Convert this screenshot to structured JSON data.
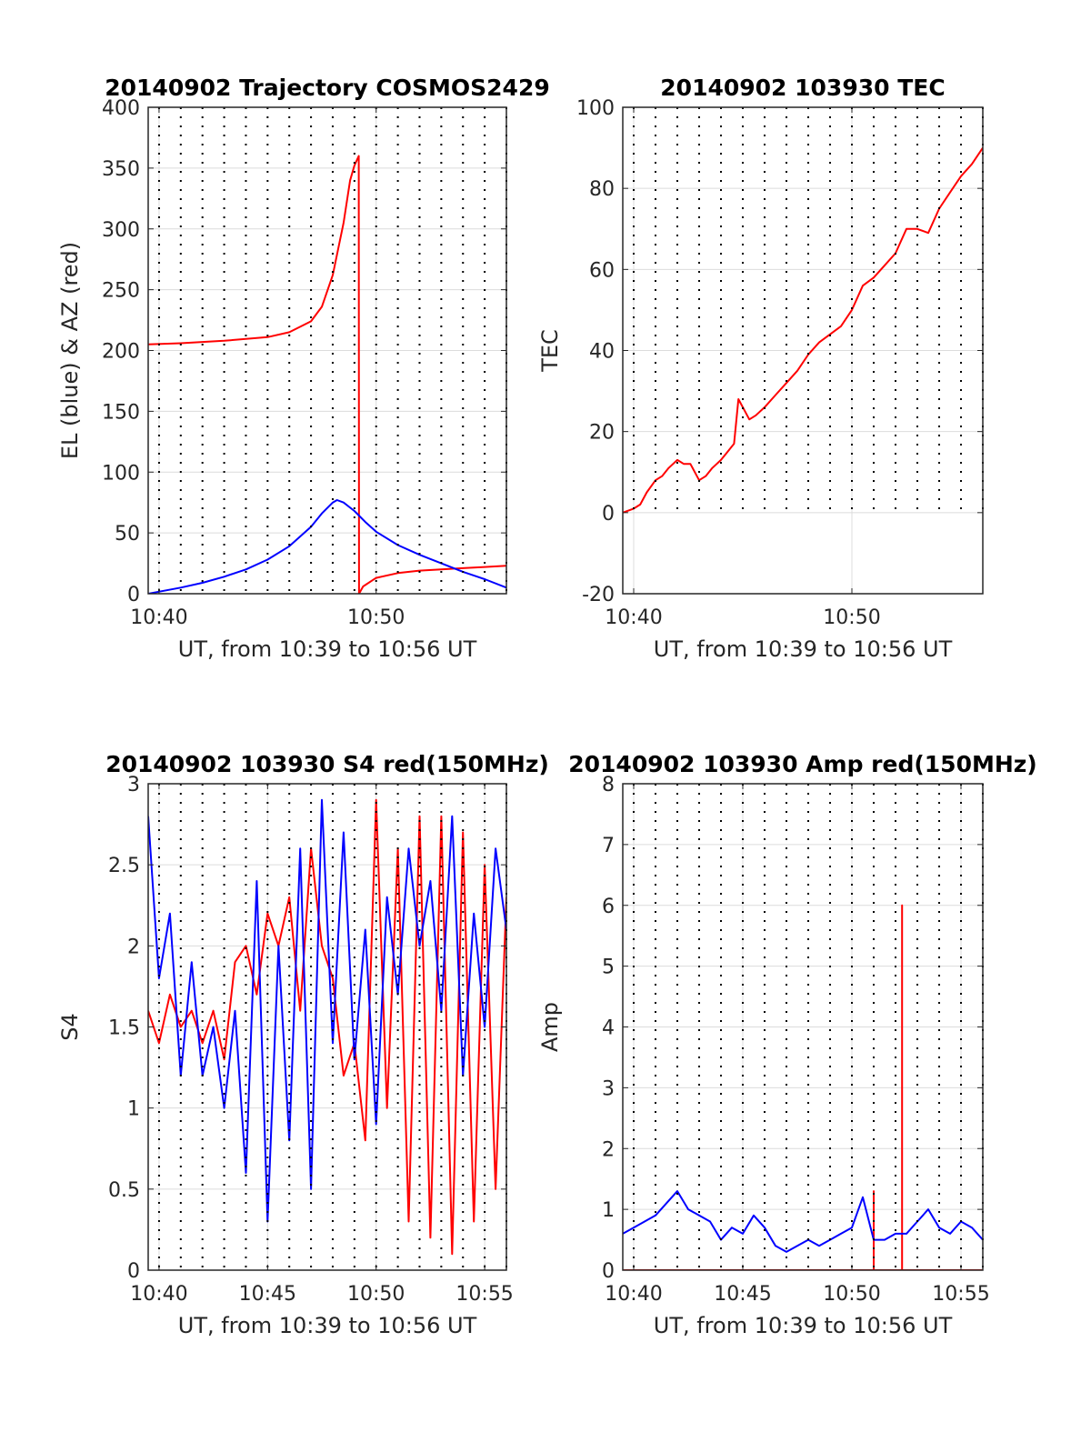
{
  "chart_data": [
    {
      "type": "line",
      "title": "20140902 Trajectory COSMOS2429",
      "xlabel": "UT, from 10:39 to 10:56 UT",
      "ylabel": "EL (blue) & AZ (red)",
      "xlim": [
        639.5,
        656.0
      ],
      "ylim": [
        0,
        400
      ],
      "xticks": [
        {
          "value": 640,
          "label": "10:40"
        },
        {
          "value": 650,
          "label": "10:50"
        }
      ],
      "yticks": [
        0,
        50,
        100,
        150,
        200,
        250,
        300,
        350,
        400
      ],
      "grid": true,
      "series": [
        {
          "color": "#ff0000",
          "x": [
            639.5,
            641,
            643,
            645,
            646,
            647,
            647.5,
            648,
            648.5,
            648.8,
            649.0,
            649.2,
            649.21,
            649.4,
            650,
            651,
            652,
            653,
            654,
            655,
            656
          ],
          "y": [
            205,
            206,
            208,
            211,
            215,
            224,
            236,
            262,
            305,
            340,
            352,
            360,
            0,
            6,
            13,
            17,
            19,
            20,
            21,
            22,
            23
          ]
        },
        {
          "color": "#0000ff",
          "x": [
            639.5,
            641,
            642,
            643,
            644,
            645,
            646,
            647,
            647.5,
            648,
            648.2,
            648.5,
            649,
            649.5,
            650,
            651,
            652,
            653,
            654,
            655,
            656
          ],
          "y": [
            0,
            5,
            9,
            14,
            20,
            28,
            39,
            55,
            66,
            75,
            77,
            75,
            68,
            59,
            51,
            40,
            32,
            25,
            18,
            12,
            5
          ]
        }
      ]
    },
    {
      "type": "line",
      "title": "20140902 103930 TEC",
      "xlabel": "UT, from 10:39 to 10:56 UT",
      "ylabel": "TEC",
      "xlim": [
        639.5,
        656.0
      ],
      "ylim": [
        -20,
        100
      ],
      "xticks": [
        {
          "value": 640,
          "label": "10:40"
        },
        {
          "value": 650,
          "label": "10:50"
        }
      ],
      "yticks": [
        -20,
        0,
        20,
        40,
        60,
        80,
        100
      ],
      "grid": true,
      "series": [
        {
          "color": "#ff0000",
          "x": [
            639.5,
            640,
            640.3,
            640.6,
            641,
            641.3,
            641.6,
            642,
            642.3,
            642.6,
            643,
            643.3,
            643.6,
            644,
            644.3,
            644.6,
            644.8,
            645,
            645.3,
            645.6,
            646,
            646.5,
            647,
            647.5,
            648,
            648.5,
            649,
            649.5,
            650,
            650.5,
            651,
            651.5,
            652,
            652.5,
            653,
            653.5,
            654,
            654.5,
            655,
            655.5,
            656
          ],
          "y": [
            0,
            1,
            2,
            5,
            8,
            9,
            11,
            13,
            12,
            12,
            8,
            9,
            11,
            13,
            15,
            17,
            28,
            26,
            23,
            24,
            26,
            29,
            32,
            35,
            39,
            42,
            44,
            46,
            50,
            56,
            58,
            61,
            64,
            70,
            70,
            69,
            75,
            79,
            83,
            86,
            90
          ]
        }
      ]
    },
    {
      "type": "line",
      "title": "20140902 103930 S4 red(150MHz)",
      "xlabel": "UT, from 10:39 to 10:56 UT",
      "ylabel": "S4",
      "xlim": [
        639.5,
        656.0
      ],
      "ylim": [
        0,
        3
      ],
      "xticks": [
        {
          "value": 640,
          "label": "10:40"
        },
        {
          "value": 645,
          "label": "10:45"
        },
        {
          "value": 650,
          "label": "10:50"
        },
        {
          "value": 655,
          "label": "10:55"
        }
      ],
      "yticks": [
        0,
        0.5,
        1,
        1.5,
        2,
        2.5,
        3
      ],
      "grid": true,
      "series": [
        {
          "color": "#ff0000",
          "x": [
            639.5,
            640,
            640.5,
            641,
            641.5,
            642,
            642.5,
            643,
            643.5,
            644,
            644.5,
            645,
            645.5,
            646,
            646.5,
            647,
            647.5,
            648,
            648.5,
            649,
            649.5,
            650,
            650.5,
            651,
            651.5,
            652,
            652.5,
            653,
            653.5,
            654,
            654.5,
            655,
            655.5,
            656
          ],
          "y": [
            1.6,
            1.4,
            1.7,
            1.5,
            1.6,
            1.4,
            1.6,
            1.3,
            1.9,
            2.0,
            1.7,
            2.2,
            2.0,
            2.3,
            1.6,
            2.6,
            2.0,
            1.8,
            1.2,
            1.4,
            0.8,
            2.9,
            1.0,
            2.6,
            0.3,
            2.8,
            0.2,
            2.8,
            0.1,
            2.7,
            0.3,
            2.5,
            0.5,
            2.3
          ]
        },
        {
          "color": "#0000ff",
          "x": [
            639.5,
            640,
            640.5,
            641,
            641.5,
            642,
            642.5,
            643,
            643.5,
            644,
            644.5,
            645,
            645.5,
            646,
            646.5,
            647,
            647.5,
            648,
            648.5,
            649,
            649.5,
            650,
            650.5,
            651,
            651.5,
            652,
            652.5,
            653,
            653.5,
            654,
            654.5,
            655,
            655.5,
            656
          ],
          "y": [
            2.8,
            1.8,
            2.2,
            1.2,
            1.9,
            1.2,
            1.5,
            1.0,
            1.6,
            0.6,
            2.4,
            0.3,
            2.0,
            0.8,
            2.6,
            0.5,
            2.9,
            1.4,
            2.7,
            1.3,
            2.1,
            0.9,
            2.3,
            1.7,
            2.6,
            2.0,
            2.4,
            1.6,
            2.8,
            1.2,
            2.2,
            1.5,
            2.6,
            2.1
          ]
        }
      ]
    },
    {
      "type": "line",
      "title": "20140902 103930 Amp red(150MHz)",
      "xlabel": "UT, from 10:39 to 10:56 UT",
      "ylabel": "Amp",
      "xlim": [
        639.5,
        656.0
      ],
      "ylim": [
        0,
        8
      ],
      "xticks": [
        {
          "value": 640,
          "label": "10:40"
        },
        {
          "value": 645,
          "label": "10:45"
        },
        {
          "value": 650,
          "label": "10:50"
        },
        {
          "value": 655,
          "label": "10:55"
        }
      ],
      "yticks": [
        0,
        1,
        2,
        3,
        4,
        5,
        6,
        7,
        8
      ],
      "grid": true,
      "series": [
        {
          "color": "#ff0000",
          "x": [
            639.5,
            651.0,
            651.0,
            651.0,
            652.3,
            652.3,
            652.3,
            656.0
          ],
          "y": [
            0.0,
            0.0,
            1.3,
            0.0,
            0.0,
            6.0,
            0.0,
            0.0
          ]
        },
        {
          "color": "#0000ff",
          "x": [
            639.5,
            640,
            640.5,
            641,
            641.5,
            642,
            642.5,
            643,
            643.5,
            644,
            644.5,
            645,
            645.5,
            646,
            646.5,
            647,
            647.5,
            648,
            648.5,
            649,
            649.5,
            650,
            650.5,
            651,
            651.5,
            652,
            652.5,
            653,
            653.5,
            654,
            654.5,
            655,
            655.5,
            656
          ],
          "y": [
            0.6,
            0.7,
            0.8,
            0.9,
            1.1,
            1.3,
            1.0,
            0.9,
            0.8,
            0.5,
            0.7,
            0.6,
            0.9,
            0.7,
            0.4,
            0.3,
            0.4,
            0.5,
            0.4,
            0.5,
            0.6,
            0.7,
            1.2,
            0.5,
            0.5,
            0.6,
            0.6,
            0.8,
            1.0,
            0.7,
            0.6,
            0.8,
            0.7,
            0.5
          ]
        }
      ]
    }
  ]
}
